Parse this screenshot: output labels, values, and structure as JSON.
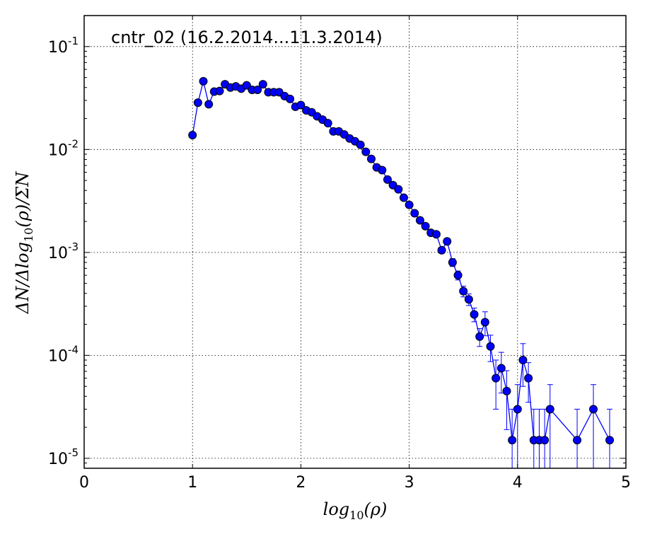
{
  "chart_data": {
    "type": "scatter",
    "title": "cntr_02 (16.2.2014...11.3.2014)",
    "xlabel": "log10(ρ)",
    "xlabel_base": "log",
    "xlabel_sub": "10",
    "xlabel_tail": "(ρ)",
    "ylabel": "ΔN/Δlog10(ρ)/ΣN",
    "ylabel_head": "ΔN/Δlog",
    "ylabel_sub": "10",
    "ylabel_tail": "(ρ)/ΣN",
    "xlim": [
      0,
      5
    ],
    "ylim": [
      8e-06,
      0.2
    ],
    "yscale": "log",
    "grid": true,
    "color": "#0000ff",
    "x_ticks": [
      "0",
      "1",
      "2",
      "3",
      "4",
      "5"
    ],
    "y_ticks": [
      {
        "base": "10",
        "exp": "-5"
      },
      {
        "base": "10",
        "exp": "-4"
      },
      {
        "base": "10",
        "exp": "-3"
      },
      {
        "base": "10",
        "exp": "-2"
      },
      {
        "base": "10",
        "exp": "-1"
      }
    ],
    "series": [
      {
        "x": [
          1.0,
          1.05,
          1.1,
          1.15,
          1.2,
          1.25,
          1.3,
          1.35,
          1.4,
          1.45,
          1.5,
          1.55,
          1.6,
          1.65,
          1.7,
          1.75,
          1.8,
          1.85,
          1.9,
          1.95,
          2.0,
          2.05,
          2.1,
          2.15,
          2.2,
          2.25,
          2.3,
          2.35,
          2.4,
          2.45,
          2.5,
          2.55,
          2.6,
          2.65,
          2.7,
          2.75,
          2.8,
          2.85,
          2.9,
          2.95,
          3.0,
          3.05,
          3.1,
          3.15,
          3.2,
          3.25,
          3.3,
          3.35,
          3.4,
          3.45,
          3.5,
          3.55,
          3.6,
          3.65,
          3.7,
          3.75,
          3.8,
          3.85,
          3.9,
          3.95,
          4.0,
          4.05,
          4.1,
          4.15,
          4.2,
          4.25,
          4.3,
          4.55,
          4.7,
          4.85
        ],
        "y": [
          0.0138,
          0.0285,
          0.046,
          0.0275,
          0.0365,
          0.037,
          0.043,
          0.04,
          0.041,
          0.039,
          0.042,
          0.038,
          0.038,
          0.043,
          0.036,
          0.036,
          0.036,
          0.033,
          0.031,
          0.026,
          0.027,
          0.024,
          0.023,
          0.021,
          0.0195,
          0.018,
          0.015,
          0.015,
          0.014,
          0.0128,
          0.012,
          0.0111,
          0.0095,
          0.0081,
          0.0067,
          0.0063,
          0.0051,
          0.0045,
          0.0041,
          0.0034,
          0.0029,
          0.0024,
          0.00205,
          0.0018,
          0.00155,
          0.0015,
          0.00105,
          0.00128,
          0.0008,
          0.0006,
          0.00042,
          0.00035,
          0.00025,
          0.000152,
          0.00021,
          0.000122,
          6e-05,
          7.5e-05,
          4.5e-05,
          1.5e-05,
          3e-05,
          9e-05,
          6e-05,
          1.5e-05,
          1.5e-05,
          1.5e-05,
          3e-05,
          1.5e-05,
          3e-05,
          1.5e-05
        ],
        "yerr": [
          0,
          0,
          0,
          0,
          0,
          0,
          0,
          0,
          0,
          0,
          0,
          0,
          0,
          0,
          0,
          0,
          0,
          0,
          0,
          0,
          0,
          0,
          0,
          0,
          0,
          0,
          0,
          0,
          0,
          0,
          0,
          0,
          0,
          0,
          0,
          0,
          0,
          0,
          0,
          0,
          0,
          0,
          0,
          0,
          0,
          0,
          7e-05,
          9e-05,
          7e-05,
          6e-05,
          5e-05,
          4.5e-05,
          3.8e-05,
          3e-05,
          5.5e-05,
          3.5e-05,
          3e-05,
          3.2e-05,
          2.6e-05,
          1.5e-05,
          2.2e-05,
          4e-05,
          2.5e-05,
          1.5e-05,
          1.5e-05,
          1.5e-05,
          2.2e-05,
          1.5e-05,
          2.2e-05,
          1.5e-05
        ]
      }
    ]
  }
}
